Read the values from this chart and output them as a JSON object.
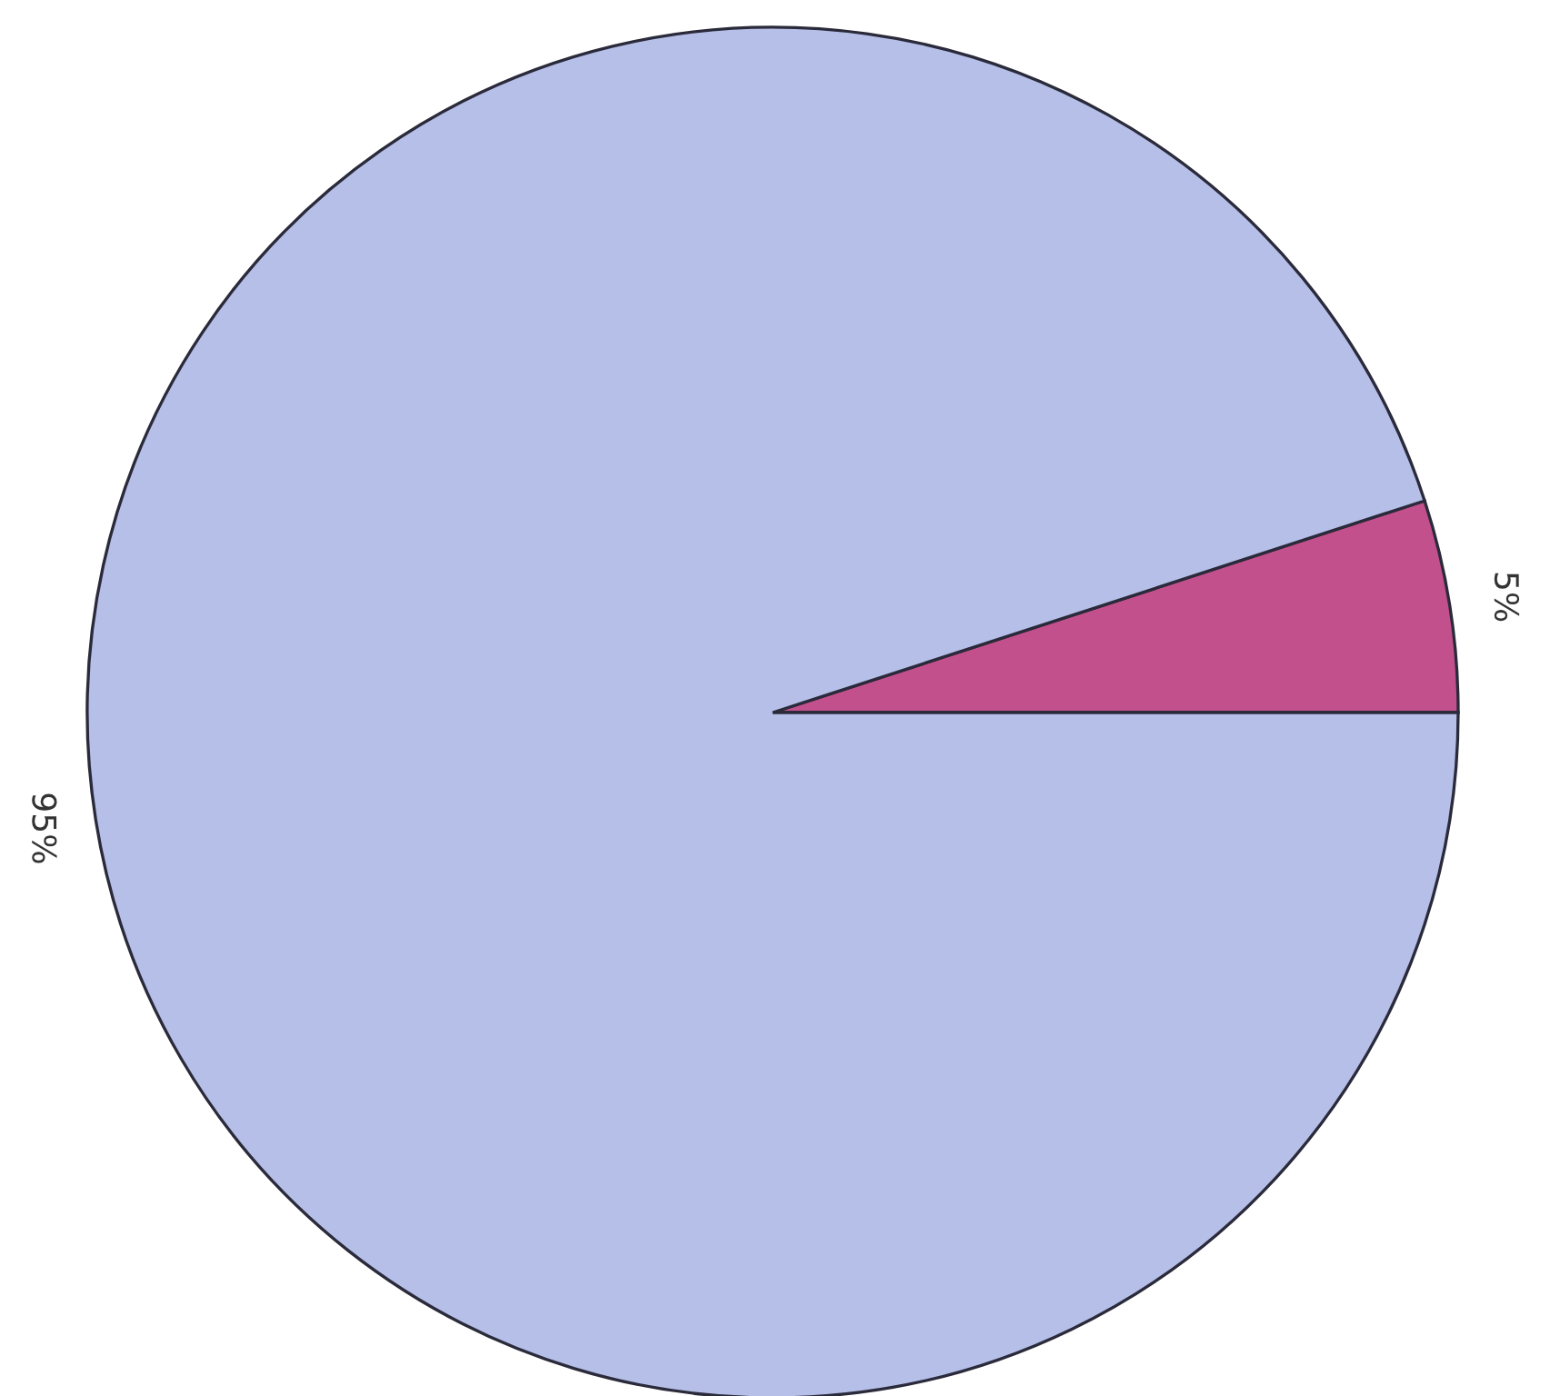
{
  "chart_data": {
    "type": "pie",
    "categories": [
      null,
      null
    ],
    "values": [
      5,
      95
    ],
    "colors": [
      "#c2508c",
      "#b5bfe8"
    ],
    "value_labels": [
      "5%",
      "95%"
    ]
  }
}
